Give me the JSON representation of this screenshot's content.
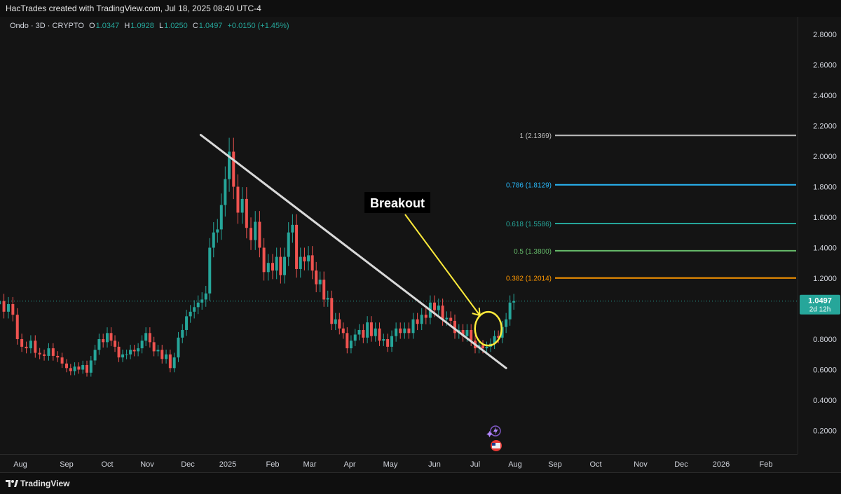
{
  "header": {
    "title": "HacTrades created with TradingView.com, Jul 18, 2025 08:40 UTC-4"
  },
  "legend": {
    "symbol": "Ondo · 3D · CRYPTO",
    "o_label": "O",
    "o_value": "1.0347",
    "h_label": "H",
    "h_value": "1.0928",
    "l_label": "L",
    "l_value": "1.0250",
    "c_label": "C",
    "c_value": "1.0497",
    "change": "+0.0150 (+1.45%)"
  },
  "footer": {
    "brand": "TradingView"
  },
  "colors": {
    "up": "#26a69a",
    "down": "#ef5350",
    "trendline": "#d9d9d9",
    "annotation": "#ffeb3b"
  },
  "chart_data": {
    "type": "candlestick",
    "y_ticks": [
      "0.2000",
      "0.4000",
      "0.6000",
      "0.8000",
      "1.0000",
      "1.2000",
      "1.4000",
      "1.6000",
      "1.8000",
      "2.0000",
      "2.2000",
      "2.4000",
      "2.6000",
      "2.8000"
    ],
    "x_ticks": [
      "Aug",
      "Sep",
      "Oct",
      "Nov",
      "Dec",
      "2025",
      "Feb",
      "Mar",
      "Apr",
      "May",
      "Jun",
      "Jul",
      "Aug",
      "Sep",
      "Oct",
      "Nov",
      "Dec",
      "2026",
      "Feb"
    ],
    "ylim": [
      0.05,
      2.93
    ],
    "price_label": {
      "value": "1.0497",
      "countdown": "2d 12h"
    },
    "fib_levels": [
      {
        "ratio": "1",
        "price": 2.1369,
        "label": "1 (2.1369)",
        "color": "#bdbdbd"
      },
      {
        "ratio": "0.786",
        "price": 1.8129,
        "label": "0.786 (1.8129)",
        "color": "#29b6f6"
      },
      {
        "ratio": "0.618",
        "price": 1.5586,
        "label": "0.618 (1.5586)",
        "color": "#26a69a"
      },
      {
        "ratio": "0.5",
        "price": 1.38,
        "label": "0.5 (1.3800)",
        "color": "#66bb6a"
      },
      {
        "ratio": "0.382",
        "price": 1.2014,
        "label": "0.382 (1.2014)",
        "color": "#ff9800"
      }
    ],
    "trendline": {
      "from": {
        "date": "2024-12-11",
        "price": 2.14
      },
      "to": {
        "date": "2025-07-25",
        "price": 0.61
      }
    },
    "annotation": {
      "text": "Breakout",
      "date": "2025-07-09",
      "price": 0.85
    },
    "closes": [
      1.05,
      0.98,
      1.03,
      0.96,
      0.8,
      0.75,
      0.74,
      0.79,
      0.71,
      0.7,
      0.69,
      0.74,
      0.69,
      0.68,
      0.64,
      0.61,
      0.59,
      0.62,
      0.6,
      0.63,
      0.58,
      0.66,
      0.73,
      0.8,
      0.78,
      0.84,
      0.79,
      0.75,
      0.68,
      0.7,
      0.7,
      0.73,
      0.72,
      0.74,
      0.79,
      0.84,
      0.78,
      0.72,
      0.73,
      0.67,
      0.7,
      0.61,
      0.68,
      0.81,
      0.86,
      0.95,
      0.98,
      1.01,
      1.04,
      1.06,
      1.1,
      1.4,
      1.5,
      1.52,
      1.68,
      1.85,
      2.03,
      1.8,
      1.63,
      1.72,
      1.53,
      1.45,
      1.57,
      1.4,
      1.24,
      1.3,
      1.25,
      1.34,
      1.22,
      1.34,
      1.5,
      1.55,
      1.26,
      1.34,
      1.31,
      1.35,
      1.25,
      1.16,
      1.19,
      1.06,
      1.07,
      0.9,
      0.93,
      0.87,
      0.84,
      0.74,
      0.79,
      0.83,
      0.86,
      0.81,
      0.91,
      0.82,
      0.87,
      0.79,
      0.8,
      0.75,
      0.82,
      0.87,
      0.84,
      0.87,
      0.84,
      0.93,
      0.9,
      0.96,
      0.94,
      1.04,
      0.99,
      1.02,
      0.93,
      0.94,
      0.92,
      0.84,
      0.86,
      0.82,
      0.86,
      0.79,
      0.74,
      0.76,
      0.74,
      0.75,
      0.77,
      0.82,
      0.81,
      0.88,
      0.93,
      1.04,
      1.05
    ],
    "volatility_note": ""
  }
}
